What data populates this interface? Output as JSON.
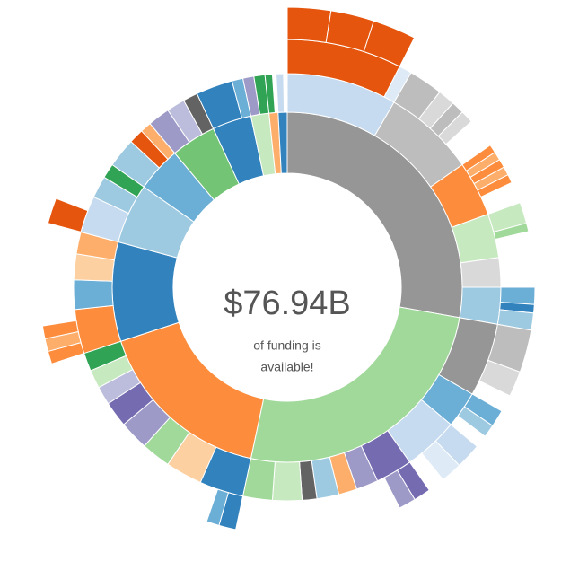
{
  "chart_data": {
    "type": "sunburst",
    "total_label": "$76.94B",
    "caption": [
      "of funding is",
      "available!"
    ],
    "nodes": [
      {
        "value": 100,
        "color": "#969696",
        "children": [
          {
            "value": 30,
            "color": "#c6dbef",
            "children": [
              {
                "value": 27,
                "color": "#e6550d",
                "children": [
                  {
                    "value": 9,
                    "color": "#e6550d"
                  },
                  {
                    "value": 9,
                    "color": "#e6550d"
                  },
                  {
                    "value": 9,
                    "color": "#e6550d"
                  }
                ]
              },
              {
                "value": 3,
                "color": "#deebf7"
              }
            ]
          },
          {
            "value": 25,
            "color": "#bdbdbd",
            "children": [
              {
                "value": 8,
                "color": "#bdbdbd"
              },
              {
                "value": 4,
                "color": "#d9d9d9"
              },
              {
                "value": 3,
                "color": "#bdbdbd"
              },
              {
                "value": 3,
                "color": "#d9d9d9"
              }
            ]
          },
          {
            "value": 15,
            "color": "#fd8d3c",
            "children": [
              {
                "value": 2,
                "color": "#fd8d3c"
              },
              {
                "value": 2,
                "color": "#fdae6b"
              },
              {
                "value": 2,
                "color": "#fd8d3c"
              },
              {
                "value": 2,
                "color": "#fdae6b"
              },
              {
                "value": 2,
                "color": "#fd8d3c"
              }
            ]
          },
          {
            "value": 12,
            "color": "#c7e9c0",
            "children": [
              {
                "value": 5,
                "color": "#c7e9c0"
              },
              {
                "value": 2,
                "color": "#a1d99b"
              }
            ]
          },
          {
            "value": 8,
            "color": "#d9d9d9"
          },
          {
            "value": 10,
            "color": "#9ecae1",
            "children": [
              {
                "value": 4,
                "color": "#6baed6"
              },
              {
                "value": 2,
                "color": "#3182bd"
              },
              {
                "value": 4,
                "color": "#9ecae1"
              }
            ]
          }
        ]
      },
      {
        "value": 92,
        "color": "#a1d99b",
        "children": [
          {
            "value": 20,
            "color": "#969696",
            "children": [
              {
                "value": 10,
                "color": "#bdbdbd"
              },
              {
                "value": 6,
                "color": "#d9d9d9"
              }
            ]
          },
          {
            "value": 10,
            "color": "#6baed6",
            "children": [
              {
                "value": 4,
                "color": "#6baed6"
              },
              {
                "value": 3,
                "color": "#9ecae1"
              }
            ]
          },
          {
            "value": 15,
            "color": "#c6dbef",
            "children": [
              {
                "value": 6,
                "color": "#c6dbef"
              },
              {
                "value": 5,
                "color": "#deebf7"
              }
            ]
          },
          {
            "value": 10,
            "color": "#756bb1",
            "children": [
              {
                "value": 4,
                "color": "#756bb1"
              },
              {
                "value": 4,
                "color": "#9e9ac8"
              }
            ]
          },
          {
            "value": 6,
            "color": "#9e9ac8"
          },
          {
            "value": 5,
            "color": "#fdae6b"
          },
          {
            "value": 6,
            "color": "#9ecae1"
          },
          {
            "value": 4,
            "color": "#636363"
          },
          {
            "value": 8,
            "color": "#c7e9c0"
          },
          {
            "value": 8,
            "color": "#a1d99b"
          }
        ]
      },
      {
        "value": 60,
        "color": "#fd8d3c",
        "children": [
          {
            "value": 12,
            "color": "#3182bd",
            "children": [
              {
                "value": 4,
                "color": "#3182bd"
              },
              {
                "value": 3,
                "color": "#6baed6"
              }
            ]
          },
          {
            "value": 10,
            "color": "#fdd0a2"
          },
          {
            "value": 8,
            "color": "#a1d99b"
          },
          {
            "value": 8,
            "color": "#9e9ac8"
          },
          {
            "value": 7,
            "color": "#756bb1"
          },
          {
            "value": 5,
            "color": "#bcbddc"
          },
          {
            "value": 5,
            "color": "#c7e9c0"
          },
          {
            "value": 5,
            "color": "#31a354"
          }
        ]
      },
      {
        "value": 33,
        "color": "#3182bd",
        "children": [
          {
            "value": 12,
            "color": "#fd8d3c",
            "children": [
              {
                "value": 3,
                "color": "#fd8d3c"
              },
              {
                "value": 3,
                "color": "#fdae6b"
              },
              {
                "value": 3,
                "color": "#fd8d3c"
              }
            ]
          },
          {
            "value": 8,
            "color": "#6baed6"
          },
          {
            "value": 7,
            "color": "#fdd0a2"
          },
          {
            "value": 6,
            "color": "#fdae6b"
          }
        ]
      },
      {
        "value": 20,
        "color": "#9ecae1",
        "children": [
          {
            "value": 10,
            "color": "#c6dbef",
            "children": [
              {
                "value": 6,
                "color": "#e6550d"
              }
            ]
          },
          {
            "value": 6,
            "color": "#9ecae1"
          },
          {
            "value": 4,
            "color": "#31a354"
          }
        ]
      },
      {
        "value": 15,
        "color": "#6baed6",
        "children": [
          {
            "value": 8,
            "color": "#9ecae1"
          },
          {
            "value": 4,
            "color": "#e6550d"
          },
          {
            "value": 3,
            "color": "#fdae6b"
          }
        ]
      },
      {
        "value": 15,
        "color": "#74c476",
        "children": [
          {
            "value": 6,
            "color": "#9e9ac8"
          },
          {
            "value": 5,
            "color": "#bcbddc"
          },
          {
            "value": 4,
            "color": "#636363"
          }
        ]
      },
      {
        "value": 13,
        "color": "#3182bd",
        "children": [
          {
            "value": 10,
            "color": "#3182bd"
          },
          {
            "value": 3,
            "color": "#6baed6"
          }
        ]
      },
      {
        "value": 6,
        "color": "#c7e9c0",
        "children": [
          {
            "value": 3,
            "color": "#9e9ac8"
          },
          {
            "value": 3,
            "color": "#31a354"
          }
        ]
      },
      {
        "value": 3,
        "color": "#fdae6b",
        "children": [
          {
            "value": 2,
            "color": "#31a354"
          }
        ]
      },
      {
        "value": 3,
        "color": "#3182bd",
        "children": [
          {
            "value": 2,
            "color": "#c6dbef"
          }
        ]
      }
    ]
  }
}
